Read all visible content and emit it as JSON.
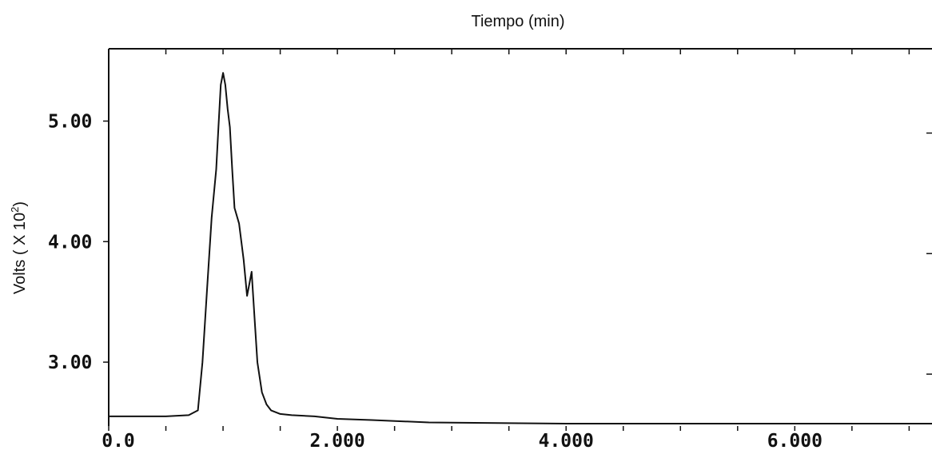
{
  "chart_data": {
    "type": "line",
    "title": "",
    "xlabel": "Tiempo (min)",
    "ylabel_main": "Volts ( X 10",
    "ylabel_exp": "2",
    "ylabel_close": ")",
    "xlim": [
      0,
      7.2
    ],
    "ylim": [
      2.47,
      5.6
    ],
    "x_ticks": [
      {
        "value": 0,
        "label": "0.0"
      },
      {
        "value": 2,
        "label": "2.000"
      },
      {
        "value": 4,
        "label": "4.000"
      },
      {
        "value": 6,
        "label": "6.000"
      }
    ],
    "y_ticks": [
      {
        "value": 3,
        "label": "3.00"
      },
      {
        "value": 4,
        "label": "4.00"
      },
      {
        "value": 5,
        "label": "5.00"
      }
    ],
    "grid": false,
    "legend": "none",
    "line_color": "#111111",
    "series": [
      {
        "x": [
          0,
          0.5,
          0.7,
          0.78,
          0.82,
          0.86,
          0.9,
          0.94,
          0.96,
          0.98,
          1.0,
          1.02,
          1.04,
          1.06,
          1.08,
          1.1,
          1.14,
          1.18,
          1.21,
          1.23,
          1.25,
          1.28,
          1.3,
          1.34,
          1.38,
          1.42,
          1.5,
          1.6,
          1.8,
          2.0,
          2.3,
          2.8,
          4.0,
          6.0,
          7.2
        ],
        "y": [
          2.55,
          2.55,
          2.56,
          2.6,
          3.0,
          3.6,
          4.2,
          4.6,
          4.95,
          5.3,
          5.4,
          5.3,
          5.1,
          4.95,
          4.6,
          4.28,
          4.15,
          3.85,
          3.55,
          3.65,
          3.75,
          3.3,
          3.0,
          2.75,
          2.65,
          2.6,
          2.57,
          2.56,
          2.55,
          2.53,
          2.52,
          2.5,
          2.49,
          2.49,
          2.49
        ]
      }
    ]
  }
}
